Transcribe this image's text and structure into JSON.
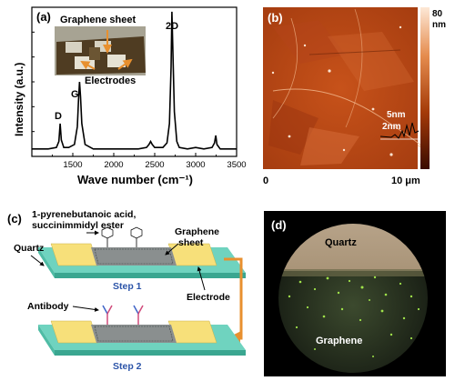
{
  "panel_a": {
    "label": "(a)",
    "inset_labels": {
      "sheet": "Graphene sheet",
      "electrodes": "Electrodes"
    },
    "chart_data": {
      "type": "line",
      "title": "",
      "xlabel": "Wave number (cm⁻¹)",
      "ylabel": "Intensity (a.u.)",
      "xlim": [
        1000,
        3500
      ],
      "x_ticks": [
        "1500",
        "2000",
        "2500",
        "3000",
        "3500"
      ],
      "peaks": [
        "D",
        "G",
        "2D"
      ],
      "series": [
        {
          "x": [
            1000,
            1100,
            1200,
            1300,
            1330,
            1345,
            1360,
            1390,
            1450,
            1520,
            1555,
            1570,
            1582,
            1595,
            1610,
            1650,
            1750,
            1900,
            2100,
            2300,
            2400,
            2430,
            2450,
            2470,
            2500,
            2600,
            2650,
            2680,
            2700,
            2710,
            2720,
            2740,
            2770,
            2800,
            2900,
            3000,
            3100,
            3200,
            3230,
            3245,
            3260,
            3300,
            3400,
            3500
          ],
          "y": [
            0.05,
            0.05,
            0.05,
            0.06,
            0.1,
            0.22,
            0.11,
            0.06,
            0.06,
            0.08,
            0.2,
            0.38,
            0.5,
            0.4,
            0.22,
            0.08,
            0.05,
            0.05,
            0.05,
            0.05,
            0.06,
            0.08,
            0.1,
            0.08,
            0.06,
            0.06,
            0.09,
            0.22,
            0.6,
            0.97,
            0.75,
            0.3,
            0.1,
            0.06,
            0.05,
            0.06,
            0.05,
            0.06,
            0.09,
            0.14,
            0.08,
            0.05,
            0.05,
            0.05
          ]
        }
      ]
    }
  },
  "panel_b": {
    "label": "(b)",
    "scalebar": {
      "top": "80",
      "unit": "nm"
    },
    "x_start": "0",
    "x_end": "10 μm",
    "profile_labels": {
      "upper": "5nm",
      "lower": "2nm"
    }
  },
  "panel_c": {
    "label": "(c)",
    "molecule": {
      "line1": "1-pyrenebutanoic acid,",
      "line2": "succinimmidyl ester"
    },
    "quartz": "Quartz",
    "graphene": {
      "line1": "Graphene",
      "line2": "sheet"
    },
    "step1": "Step 1",
    "electrode": "Electrode",
    "antibody": "Antibody",
    "step2": "Step 2"
  },
  "panel_d": {
    "label": "(d)",
    "quartz": "Quartz",
    "graphene": "Graphene"
  },
  "colors": {
    "substrate": "#6fd3bf",
    "substrate_dark": "#3aa690",
    "electrode": "#f7e07a",
    "arrow": "#e8902f",
    "afm_dark": "#5a1f00",
    "afm_mid": "#c4531a",
    "afm_light": "#f2b48a"
  }
}
